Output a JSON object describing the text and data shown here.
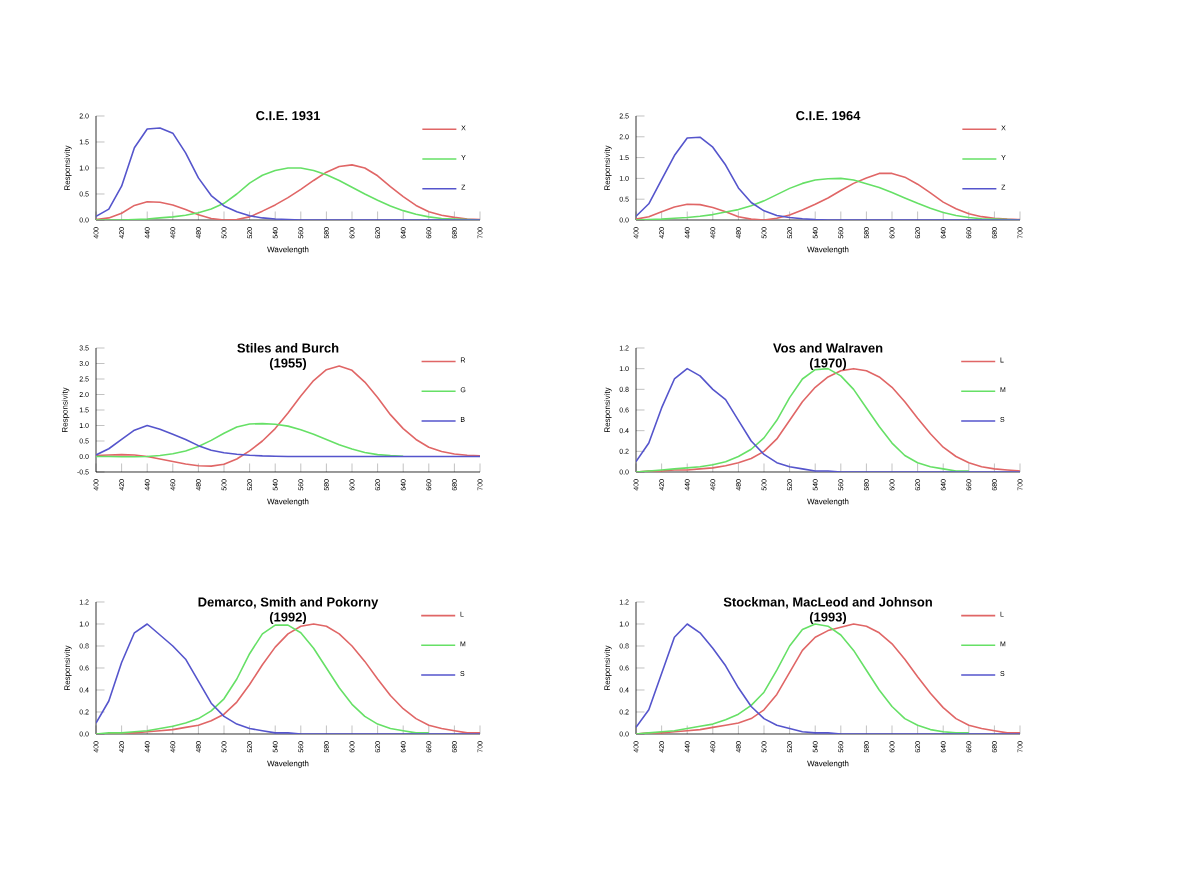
{
  "chart_data": [
    {
      "type": "line",
      "title": "C.I.E. 1931",
      "xlabel": "Wavelength",
      "ylabel": "Responsivity",
      "legend": "top right",
      "xlim": [
        400,
        700
      ],
      "xticks": [
        400,
        420,
        440,
        460,
        480,
        500,
        520,
        540,
        560,
        580,
        600,
        620,
        640,
        660,
        680,
        700
      ],
      "ylim": [
        0,
        2.0
      ],
      "yticks": [
        {
          "value": 0,
          "label": "0.0"
        },
        {
          "value": 0.5,
          "label": "0.5"
        },
        {
          "value": 1,
          "label": "1.0"
        },
        {
          "value": 1.5,
          "label": "1.5"
        },
        {
          "value": 2,
          "label": "2.0"
        }
      ],
      "x": [
        400,
        410,
        420,
        430,
        440,
        450,
        460,
        470,
        480,
        490,
        500,
        510,
        520,
        530,
        540,
        550,
        560,
        570,
        580,
        590,
        600,
        610,
        620,
        630,
        640,
        650,
        660,
        670,
        680,
        690,
        700
      ],
      "series": [
        {
          "name": "X",
          "color": "#e06666",
          "values": [
            0.01,
            0.04,
            0.13,
            0.28,
            0.35,
            0.34,
            0.29,
            0.2,
            0.1,
            0.03,
            0.0,
            0.01,
            0.06,
            0.17,
            0.29,
            0.43,
            0.59,
            0.76,
            0.92,
            1.03,
            1.06,
            1.0,
            0.85,
            0.64,
            0.45,
            0.28,
            0.16,
            0.09,
            0.05,
            0.02,
            0.01
          ]
        },
        {
          "name": "Y",
          "color": "#66e066",
          "values": [
            0.0,
            0.0,
            0.0,
            0.01,
            0.02,
            0.04,
            0.06,
            0.09,
            0.14,
            0.21,
            0.32,
            0.5,
            0.71,
            0.86,
            0.95,
            1.0,
            1.0,
            0.95,
            0.87,
            0.76,
            0.63,
            0.5,
            0.38,
            0.27,
            0.18,
            0.11,
            0.06,
            0.03,
            0.02,
            0.01,
            0.0
          ]
        },
        {
          "name": "Z",
          "color": "#5555cc",
          "values": [
            0.07,
            0.21,
            0.65,
            1.39,
            1.75,
            1.77,
            1.67,
            1.29,
            0.81,
            0.47,
            0.27,
            0.16,
            0.08,
            0.04,
            0.02,
            0.01,
            0.0,
            0.0,
            0.0,
            0.0,
            0.0,
            0.0,
            0.0,
            0,
            0,
            0,
            0,
            0,
            0,
            0,
            0
          ]
        }
      ]
    },
    {
      "type": "line",
      "title": "C.I.E. 1964",
      "xlabel": "Wavelength",
      "ylabel": "Responsivity",
      "legend": "top right",
      "xlim": [
        400,
        700
      ],
      "xticks": [
        400,
        420,
        440,
        460,
        480,
        500,
        520,
        540,
        560,
        580,
        600,
        620,
        640,
        660,
        680,
        700
      ],
      "ylim": [
        0,
        2.5
      ],
      "yticks": [
        {
          "value": 0,
          "label": "0.0"
        },
        {
          "value": 0.5,
          "label": "0.5"
        },
        {
          "value": 1,
          "label": "1.0"
        },
        {
          "value": 1.5,
          "label": "1.5"
        },
        {
          "value": 2,
          "label": "2.0"
        },
        {
          "value": 2.5,
          "label": "2.5"
        }
      ],
      "x": [
        400,
        410,
        420,
        430,
        440,
        450,
        460,
        470,
        480,
        490,
        500,
        510,
        520,
        530,
        540,
        550,
        560,
        570,
        580,
        590,
        600,
        610,
        620,
        630,
        640,
        650,
        660,
        670,
        680,
        690,
        700
      ],
      "series": [
        {
          "name": "X",
          "color": "#e06666",
          "values": [
            0.02,
            0.08,
            0.2,
            0.31,
            0.38,
            0.37,
            0.3,
            0.2,
            0.08,
            0.02,
            0.0,
            0.04,
            0.12,
            0.24,
            0.38,
            0.53,
            0.71,
            0.88,
            1.01,
            1.12,
            1.12,
            1.03,
            0.86,
            0.65,
            0.43,
            0.27,
            0.15,
            0.08,
            0.04,
            0.02,
            0.01
          ]
        },
        {
          "name": "Y",
          "color": "#66e066",
          "values": [
            0.0,
            0.01,
            0.02,
            0.04,
            0.06,
            0.09,
            0.13,
            0.19,
            0.25,
            0.34,
            0.46,
            0.61,
            0.76,
            0.88,
            0.96,
            0.99,
            1.0,
            0.96,
            0.87,
            0.78,
            0.66,
            0.53,
            0.4,
            0.28,
            0.18,
            0.11,
            0.06,
            0.03,
            0.02,
            0.01,
            0.0
          ]
        },
        {
          "name": "Z",
          "color": "#5555cc",
          "values": [
            0.09,
            0.39,
            0.97,
            1.55,
            1.97,
            1.99,
            1.75,
            1.32,
            0.77,
            0.42,
            0.22,
            0.11,
            0.06,
            0.03,
            0.01,
            0.0,
            0,
            0,
            0,
            0,
            0,
            0,
            0,
            0,
            0,
            0,
            0,
            0,
            0,
            0,
            0
          ]
        }
      ]
    },
    {
      "type": "line",
      "title": "Stiles and Burch",
      "subtitle": "(1955)",
      "xlabel": "Wavelength",
      "ylabel": "Responsivity",
      "legend": "top right",
      "xlim": [
        400,
        700
      ],
      "xticks": [
        400,
        420,
        440,
        460,
        480,
        500,
        520,
        540,
        560,
        580,
        600,
        620,
        640,
        660,
        680,
        700
      ],
      "ylim": [
        -0.5,
        3.5
      ],
      "yticks": [
        {
          "value": -0.5,
          "label": "-0.5"
        },
        {
          "value": 0,
          "label": "0.0"
        },
        {
          "value": 0.5,
          "label": "0.5"
        },
        {
          "value": 1,
          "label": "1.0"
        },
        {
          "value": 1.5,
          "label": "1.5"
        },
        {
          "value": 2,
          "label": "2.0"
        },
        {
          "value": 2.5,
          "label": "2.5"
        },
        {
          "value": 3,
          "label": "3.0"
        },
        {
          "value": 3.5,
          "label": "3.5"
        }
      ],
      "x": [
        400,
        410,
        420,
        430,
        440,
        450,
        460,
        470,
        480,
        490,
        500,
        510,
        520,
        530,
        540,
        550,
        560,
        570,
        580,
        590,
        600,
        610,
        620,
        630,
        640,
        650,
        660,
        670,
        680,
        690,
        700
      ],
      "series": [
        {
          "name": "R",
          "color": "#e06666",
          "values": [
            0.03,
            0.05,
            0.06,
            0.05,
            0.0,
            -0.08,
            -0.16,
            -0.24,
            -0.3,
            -0.31,
            -0.25,
            -0.08,
            0.18,
            0.5,
            0.9,
            1.4,
            1.95,
            2.45,
            2.8,
            2.92,
            2.78,
            2.4,
            1.9,
            1.35,
            0.9,
            0.55,
            0.3,
            0.16,
            0.08,
            0.04,
            0.02
          ]
        },
        {
          "name": "G",
          "color": "#66e066",
          "values": [
            0.0,
            0.0,
            -0.01,
            -0.01,
            0.0,
            0.03,
            0.09,
            0.18,
            0.32,
            0.52,
            0.75,
            0.95,
            1.05,
            1.06,
            1.04,
            0.98,
            0.86,
            0.72,
            0.55,
            0.38,
            0.24,
            0.13,
            0.06,
            0.03,
            0.01,
            null,
            null,
            null,
            null,
            null,
            null
          ]
        },
        {
          "name": "B",
          "color": "#5555cc",
          "values": [
            0.05,
            0.25,
            0.55,
            0.85,
            1.0,
            0.88,
            0.72,
            0.55,
            0.35,
            0.2,
            0.12,
            0.07,
            0.04,
            0.02,
            0.01,
            0,
            0,
            0,
            0,
            0,
            0,
            0,
            0,
            0,
            0,
            0,
            0,
            0,
            0,
            0,
            0
          ]
        }
      ]
    },
    {
      "type": "line",
      "title": "Vos and Walraven",
      "subtitle": "(1970)",
      "xlabel": "Wavelength",
      "ylabel": "Responsivity",
      "legend": "top right",
      "xlim": [
        400,
        700
      ],
      "xticks": [
        400,
        420,
        440,
        460,
        480,
        500,
        520,
        540,
        560,
        580,
        600,
        620,
        640,
        660,
        680,
        700
      ],
      "ylim": [
        0,
        1.2
      ],
      "yticks": [
        {
          "value": 0,
          "label": "0.0"
        },
        {
          "value": 0.2,
          "label": "0.2"
        },
        {
          "value": 0.4,
          "label": "0.4"
        },
        {
          "value": 0.6,
          "label": "0.6"
        },
        {
          "value": 0.8,
          "label": "0.8"
        },
        {
          "value": 1,
          "label": "1.0"
        },
        {
          "value": 1.2,
          "label": "1.2"
        }
      ],
      "x": [
        400,
        410,
        420,
        430,
        440,
        450,
        460,
        470,
        480,
        490,
        500,
        510,
        520,
        530,
        540,
        550,
        560,
        570,
        580,
        590,
        600,
        610,
        620,
        630,
        640,
        650,
        660,
        670,
        680,
        690,
        700
      ],
      "series": [
        {
          "name": "L",
          "color": "#e06666",
          "values": [
            0.0,
            0.01,
            0.01,
            0.02,
            0.02,
            0.03,
            0.04,
            0.06,
            0.09,
            0.13,
            0.2,
            0.32,
            0.5,
            0.68,
            0.82,
            0.92,
            0.98,
            1.0,
            0.98,
            0.92,
            0.82,
            0.68,
            0.52,
            0.37,
            0.24,
            0.15,
            0.09,
            0.05,
            0.03,
            0.02,
            0.01
          ]
        },
        {
          "name": "M",
          "color": "#66e066",
          "values": [
            0.0,
            0.01,
            0.02,
            0.03,
            0.04,
            0.05,
            0.07,
            0.1,
            0.15,
            0.22,
            0.33,
            0.5,
            0.72,
            0.9,
            0.99,
            1.0,
            0.93,
            0.8,
            0.62,
            0.44,
            0.28,
            0.16,
            0.09,
            0.05,
            0.03,
            0.01,
            0.01,
            null,
            null,
            null,
            null
          ]
        },
        {
          "name": "S",
          "color": "#5555cc",
          "values": [
            0.1,
            0.28,
            0.62,
            0.9,
            1.0,
            0.93,
            0.8,
            0.7,
            0.5,
            0.3,
            0.17,
            0.09,
            0.05,
            0.03,
            0.01,
            0.01,
            0.0,
            0.0,
            0,
            0,
            0,
            0,
            0,
            0,
            0,
            0,
            0,
            0,
            0,
            0,
            0
          ]
        }
      ]
    },
    {
      "type": "line",
      "title": "Demarco, Smith and Pokorny",
      "subtitle": "(1992)",
      "xlabel": "Wavelength",
      "ylabel": "Responsivity",
      "legend": "top right",
      "xlim": [
        400,
        700
      ],
      "xticks": [
        400,
        420,
        440,
        460,
        480,
        500,
        520,
        540,
        560,
        580,
        600,
        620,
        640,
        660,
        680,
        700
      ],
      "ylim": [
        0,
        1.2
      ],
      "yticks": [
        {
          "value": 0,
          "label": "0.0"
        },
        {
          "value": 0.2,
          "label": "0.2"
        },
        {
          "value": 0.4,
          "label": "0.4"
        },
        {
          "value": 0.6,
          "label": "0.6"
        },
        {
          "value": 0.8,
          "label": "0.8"
        },
        {
          "value": 1,
          "label": "1.0"
        },
        {
          "value": 1.2,
          "label": "1.2"
        }
      ],
      "x": [
        400,
        410,
        420,
        430,
        440,
        450,
        460,
        470,
        480,
        490,
        500,
        510,
        520,
        530,
        540,
        550,
        560,
        570,
        580,
        590,
        600,
        610,
        620,
        630,
        640,
        650,
        660,
        670,
        680,
        690,
        700
      ],
      "series": [
        {
          "name": "L",
          "color": "#e06666",
          "values": [
            0.0,
            0.0,
            0.01,
            0.01,
            0.02,
            0.03,
            0.04,
            0.06,
            0.08,
            0.12,
            0.18,
            0.29,
            0.45,
            0.63,
            0.79,
            0.91,
            0.98,
            1.0,
            0.98,
            0.91,
            0.8,
            0.66,
            0.5,
            0.35,
            0.23,
            0.14,
            0.08,
            0.05,
            0.03,
            0.01,
            0.01
          ]
        },
        {
          "name": "M",
          "color": "#66e066",
          "values": [
            0.0,
            0.01,
            0.01,
            0.02,
            0.03,
            0.05,
            0.07,
            0.1,
            0.14,
            0.21,
            0.32,
            0.5,
            0.73,
            0.91,
            0.99,
            0.99,
            0.92,
            0.78,
            0.6,
            0.42,
            0.27,
            0.16,
            0.09,
            0.05,
            0.03,
            0.01,
            0.01,
            null,
            null,
            null,
            null
          ]
        },
        {
          "name": "S",
          "color": "#5555cc",
          "values": [
            0.1,
            0.3,
            0.65,
            0.92,
            1.0,
            0.9,
            0.8,
            0.68,
            0.48,
            0.28,
            0.16,
            0.09,
            0.05,
            0.03,
            0.01,
            0.01,
            0.0,
            0.0,
            0,
            0,
            0,
            0,
            0,
            0,
            0,
            0,
            0,
            0,
            0,
            0,
            0
          ]
        }
      ]
    },
    {
      "type": "line",
      "title": "Stockman, MacLeod and Johnson",
      "subtitle": "(1993)",
      "xlabel": "Wavelength",
      "ylabel": "Responsivity",
      "legend": "top right",
      "xlim": [
        400,
        700
      ],
      "xticks": [
        400,
        420,
        440,
        460,
        480,
        500,
        520,
        540,
        560,
        580,
        600,
        620,
        640,
        660,
        680,
        700
      ],
      "ylim": [
        0,
        1.2
      ],
      "yticks": [
        {
          "value": 0,
          "label": "0.0"
        },
        {
          "value": 0.2,
          "label": "0.2"
        },
        {
          "value": 0.4,
          "label": "0.4"
        },
        {
          "value": 0.6,
          "label": "0.6"
        },
        {
          "value": 0.8,
          "label": "0.8"
        },
        {
          "value": 1,
          "label": "1.0"
        },
        {
          "value": 1.2,
          "label": "1.2"
        }
      ],
      "x": [
        400,
        410,
        420,
        430,
        440,
        450,
        460,
        470,
        480,
        490,
        500,
        510,
        520,
        530,
        540,
        550,
        560,
        570,
        580,
        590,
        600,
        610,
        620,
        630,
        640,
        650,
        660,
        670,
        680,
        690,
        700
      ],
      "series": [
        {
          "name": "L",
          "color": "#e06666",
          "values": [
            0.0,
            0.01,
            0.01,
            0.02,
            0.03,
            0.04,
            0.06,
            0.08,
            0.1,
            0.14,
            0.22,
            0.36,
            0.56,
            0.76,
            0.88,
            0.94,
            0.97,
            1.0,
            0.98,
            0.92,
            0.82,
            0.68,
            0.52,
            0.37,
            0.24,
            0.14,
            0.08,
            0.05,
            0.03,
            0.01,
            0.01
          ]
        },
        {
          "name": "M",
          "color": "#66e066",
          "values": [
            0.0,
            0.01,
            0.02,
            0.03,
            0.05,
            0.07,
            0.09,
            0.13,
            0.18,
            0.26,
            0.38,
            0.58,
            0.8,
            0.95,
            1.0,
            0.98,
            0.9,
            0.76,
            0.58,
            0.4,
            0.25,
            0.14,
            0.08,
            0.04,
            0.02,
            0.01,
            0.01,
            null,
            null,
            null,
            null
          ]
        },
        {
          "name": "S",
          "color": "#5555cc",
          "values": [
            0.06,
            0.22,
            0.55,
            0.88,
            1.0,
            0.92,
            0.78,
            0.62,
            0.42,
            0.25,
            0.14,
            0.08,
            0.05,
            0.02,
            0.01,
            0.01,
            0.0,
            0.0,
            0,
            0,
            0,
            0,
            0,
            0,
            0,
            0,
            0,
            0,
            0,
            0,
            0
          ]
        }
      ]
    }
  ]
}
